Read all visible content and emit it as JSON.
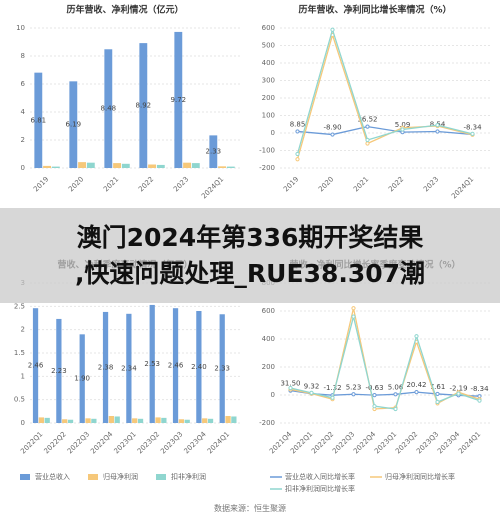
{
  "banner": [
    "澳门2024年第336期开奖结果",
    ",快速问题处理_RUE38.307潮"
  ],
  "source": "数据来源：恒生聚源",
  "chart_data": [
    {
      "type": "bar",
      "title": "历年营收、净利情况（亿元）",
      "categories": [
        "2019",
        "2020",
        "2021",
        "2022",
        "2023",
        "2024Q1"
      ],
      "series": [
        {
          "color": "#6b9bd8",
          "values": [
            6.81,
            6.19,
            8.48,
            8.92,
            9.72,
            2.33
          ],
          "value_labels": [
            "6.81",
            "6.19",
            "8.48",
            "8.92",
            "9.72",
            "2.33"
          ]
        },
        {
          "color": "#f6c87a",
          "values": [
            0.15,
            0.42,
            0.35,
            0.25,
            0.38,
            0.12
          ]
        },
        {
          "color": "#8fd6cf",
          "values": [
            0.1,
            0.38,
            0.3,
            0.22,
            0.35,
            0.1
          ]
        }
      ],
      "ylim": [
        0,
        10
      ],
      "yticks": [
        0,
        2,
        4,
        6,
        8,
        10
      ],
      "grid": true
    },
    {
      "type": "line",
      "title": "历年营收、净利同比增长率情况（%）",
      "categories": [
        "2019",
        "2020",
        "2021",
        "2022",
        "2023",
        "2024Q1"
      ],
      "series": [
        {
          "color": "#6b9bd8",
          "values": [
            8.85,
            -8.9,
            36.52,
            5.09,
            8.54,
            -8.34
          ],
          "value_labels": [
            "8.85",
            "-8.90",
            "36.52",
            "5.09",
            "8.54",
            "-8.34"
          ]
        },
        {
          "color": "#f6c87a",
          "values": [
            -150,
            560,
            -60,
            30,
            40,
            -10
          ]
        },
        {
          "color": "#8fd6cf",
          "values": [
            -120,
            590,
            -40,
            20,
            45,
            -5
          ]
        }
      ],
      "ylim": [
        -200,
        600
      ],
      "yticks": [
        -200,
        -100,
        0,
        100,
        200,
        300,
        400,
        500,
        600
      ],
      "grid": true
    },
    {
      "type": "bar",
      "title": "营收、净利季度变动情况（亿元）",
      "categories": [
        "2022Q1",
        "2022Q2",
        "2022Q3",
        "2022Q4",
        "2023Q1",
        "2023Q2",
        "2023Q3",
        "2023Q4",
        "2024Q1"
      ],
      "series": [
        {
          "name": "营业总收入",
          "color": "#6b9bd8",
          "values": [
            2.46,
            2.23,
            1.9,
            2.38,
            2.34,
            2.53,
            2.46,
            2.4,
            2.33
          ],
          "value_labels": [
            "2.46",
            "2.23",
            "1.90",
            "2.38",
            "2.34",
            "2.53",
            "2.46",
            "2.40",
            "2.33"
          ]
        },
        {
          "name": "归母净利润",
          "color": "#f6c87a",
          "values": [
            0.12,
            0.08,
            0.1,
            0.15,
            0.1,
            0.12,
            0.08,
            0.1,
            0.15
          ]
        },
        {
          "name": "扣非净利润",
          "color": "#8fd6cf",
          "values": [
            0.11,
            0.07,
            0.09,
            0.14,
            0.09,
            0.11,
            0.07,
            0.09,
            0.14
          ]
        }
      ],
      "ylim": [
        0,
        3
      ],
      "yticks": [
        0,
        0.5,
        1,
        1.5,
        2,
        2.5,
        3
      ],
      "grid": true,
      "legend": "bottom"
    },
    {
      "type": "line",
      "title": "营收、净利同比增长率季度变动情况（%）",
      "categories": [
        "2021Q4",
        "2022Q1",
        "2022Q2",
        "2022Q3",
        "2022Q4",
        "2023Q1",
        "2023Q2",
        "2023Q3",
        "2023Q4",
        "2024Q1"
      ],
      "series": [
        {
          "name": "营业总收入同比增长率",
          "color": "#6b9bd8",
          "values": [
            31.5,
            9.32,
            -1.32,
            5.23,
            -0.63,
            5.06,
            20.42,
            7.61,
            -2.19,
            -8.34
          ],
          "value_labels": [
            "31.50",
            "9.32",
            "-1.32",
            "5.23",
            "-0.63",
            "5.06",
            "20.42",
            "7.61",
            "-2.19",
            "-8.34"
          ]
        },
        {
          "name": "归母净利润同比增长率",
          "color": "#f6c87a",
          "values": [
            40,
            10,
            -30,
            620,
            -100,
            -90,
            380,
            -60,
            20,
            -30
          ]
        },
        {
          "name": "扣非净利润同比增长率",
          "color": "#8fd6cf",
          "values": [
            50,
            15,
            -20,
            560,
            -80,
            -100,
            420,
            -50,
            10,
            -40
          ]
        }
      ],
      "ylim": [
        -200,
        800
      ],
      "yticks": [
        -200,
        0,
        200,
        400,
        600,
        800
      ],
      "grid": true,
      "legend": "bottom"
    }
  ]
}
